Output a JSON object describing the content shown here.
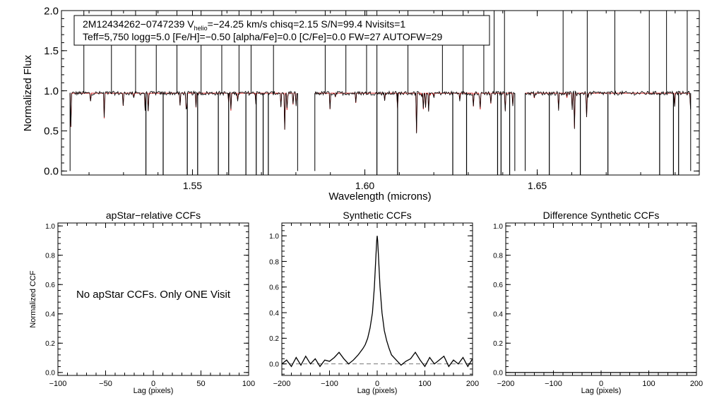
{
  "chart_data": [
    {
      "type": "line",
      "name": "spectrum",
      "info_line1": "2M12434262−0747239  V",
      "info_vhelio_sub": "helio",
      "info_line1_rest": "=−24.25 km/s  chisq=2.15  S/N=99.4  Nvisits=1",
      "info_line2": "Teff=5,750 logg=5.0 [Fe/H]=−0.50 [alpha/Fe]=0.0 [C/Fe]=0.0 FW=27 AUTOFW=29",
      "xlabel": "Wavelength (microns)",
      "ylabel": "Normalized Flux",
      "xlim": [
        1.512,
        1.697
      ],
      "ylim": [
        -0.05,
        2.0
      ],
      "xticks": [
        1.55,
        1.6,
        1.65
      ],
      "xtick_labels": [
        "1.55",
        "1.60",
        "1.65"
      ],
      "yticks": [
        0.0,
        0.5,
        1.0,
        1.5,
        2.0
      ],
      "ytick_labels": [
        "0.0",
        "0.5",
        "1.0",
        "1.5",
        "2.0"
      ],
      "chips": [
        [
          1.5145,
          1.5805
        ],
        [
          1.5855,
          1.6435
        ],
        [
          1.6465,
          1.6945
        ]
      ],
      "series": [
        {
          "name": "Observed spectrum",
          "color": "#000000",
          "continuum": 0.97
        },
        {
          "name": "Model spectrum",
          "color": "#cc0000",
          "continuum": 0.97
        }
      ],
      "bad_pixels_low": [
        1.5365,
        1.5415,
        1.5485,
        1.5515,
        1.5575,
        1.5605,
        1.5655,
        1.5685,
        1.5705,
        1.572,
        1.6035,
        1.6095,
        1.6255,
        1.6295,
        1.6385,
        1.6395,
        1.642,
        1.6535,
        1.6625,
        1.6705,
        1.6855,
        1.6895,
        1.691
      ],
      "spikes_high": [
        1.5185,
        1.5265,
        1.5335,
        1.5395,
        1.5455,
        1.5525,
        1.5585,
        1.5635,
        1.567,
        1.5735,
        1.5885,
        1.5945,
        1.6005,
        1.6035,
        1.6125,
        1.6225,
        1.6285,
        1.6345,
        1.6375,
        1.6405,
        1.6575,
        1.6645,
        1.6725,
        1.6825,
        1.6875,
        1.6935
      ]
    },
    {
      "type": "line",
      "name": "apstar-ccf",
      "title": "apStar−relative CCFs",
      "message": "No apStar CCFs.  Only ONE Visit",
      "xlabel": "Lag (pixels)",
      "ylabel": "Normalized CCF",
      "xlim": [
        -100,
        100
      ],
      "ylim": [
        -0.02,
        1.02
      ],
      "xticks": [
        -100,
        -50,
        0,
        50,
        100
      ],
      "xtick_labels": [
        "−100",
        "−50",
        "0",
        "50",
        "100"
      ],
      "yticks": [
        0.0,
        0.2,
        0.4,
        0.6,
        0.8,
        1.0
      ],
      "ytick_labels": [
        "0.0",
        "0.2",
        "0.4",
        "0.6",
        "0.8",
        "1.0"
      ]
    },
    {
      "type": "line",
      "name": "synthetic-ccf",
      "title": "Synthetic CCFs",
      "xlabel": "Lag (pixels)",
      "xlim": [
        -200,
        200
      ],
      "ylim": [
        -0.09,
        1.1
      ],
      "xticks": [
        -200,
        -100,
        0,
        100,
        200
      ],
      "xtick_labels": [
        "−200",
        "−100",
        "0",
        "100",
        "200"
      ],
      "yticks": [
        0.0,
        0.2,
        0.4,
        0.6,
        0.8,
        1.0
      ],
      "ytick_labels": [
        "0.0",
        "0.2",
        "0.4",
        "0.6",
        "0.8",
        "1.0"
      ],
      "series": [
        {
          "name": "CCF",
          "color": "#000000",
          "x": [
            -200,
            -190,
            -180,
            -170,
            -160,
            -150,
            -140,
            -130,
            -120,
            -110,
            -100,
            -90,
            -80,
            -70,
            -60,
            -50,
            -40,
            -30,
            -25,
            -20,
            -15,
            -10,
            -6,
            -3,
            -1,
            0,
            1,
            3,
            6,
            10,
            15,
            20,
            25,
            30,
            40,
            50,
            60,
            70,
            80,
            90,
            100,
            110,
            120,
            130,
            140,
            150,
            160,
            170,
            180,
            190,
            200
          ],
          "y": [
            0.0,
            0.03,
            -0.02,
            0.05,
            -0.01,
            0.06,
            0.0,
            0.04,
            -0.02,
            0.03,
            0.02,
            0.05,
            0.09,
            0.04,
            0.0,
            0.03,
            0.07,
            0.12,
            0.15,
            0.2,
            0.28,
            0.4,
            0.6,
            0.82,
            0.96,
            1.0,
            0.96,
            0.82,
            0.6,
            0.4,
            0.26,
            0.18,
            0.12,
            0.07,
            0.03,
            -0.01,
            0.02,
            0.04,
            0.09,
            0.03,
            -0.02,
            0.05,
            0.0,
            0.03,
            0.06,
            -0.02,
            0.03,
            0.0,
            0.05,
            -0.02,
            0.04
          ]
        },
        {
          "name": "Zero level",
          "color": "#777777",
          "dashed": true,
          "x": [
            -200,
            200
          ],
          "y": [
            0.0,
            0.0
          ]
        }
      ]
    },
    {
      "type": "line",
      "name": "difference-ccf",
      "title": "Difference Synthetic CCFs",
      "xlabel": "Lag (pixels)",
      "xlim": [
        -200,
        200
      ],
      "ylim": [
        -0.02,
        1.02
      ],
      "xticks": [
        -200,
        -100,
        0,
        100,
        200
      ],
      "xtick_labels": [
        "−200",
        "−100",
        "0",
        "100",
        "200"
      ],
      "yticks": [
        0.0,
        0.2,
        0.4,
        0.6,
        0.8,
        1.0
      ],
      "ytick_labels": [
        "0.0",
        "0.2",
        "0.4",
        "0.6",
        "0.8",
        "1.0"
      ],
      "series": [
        {
          "name": "Difference CCF",
          "color": "#000000",
          "x": [
            -200,
            200
          ],
          "y": [
            0.0,
            0.0
          ]
        }
      ]
    }
  ]
}
